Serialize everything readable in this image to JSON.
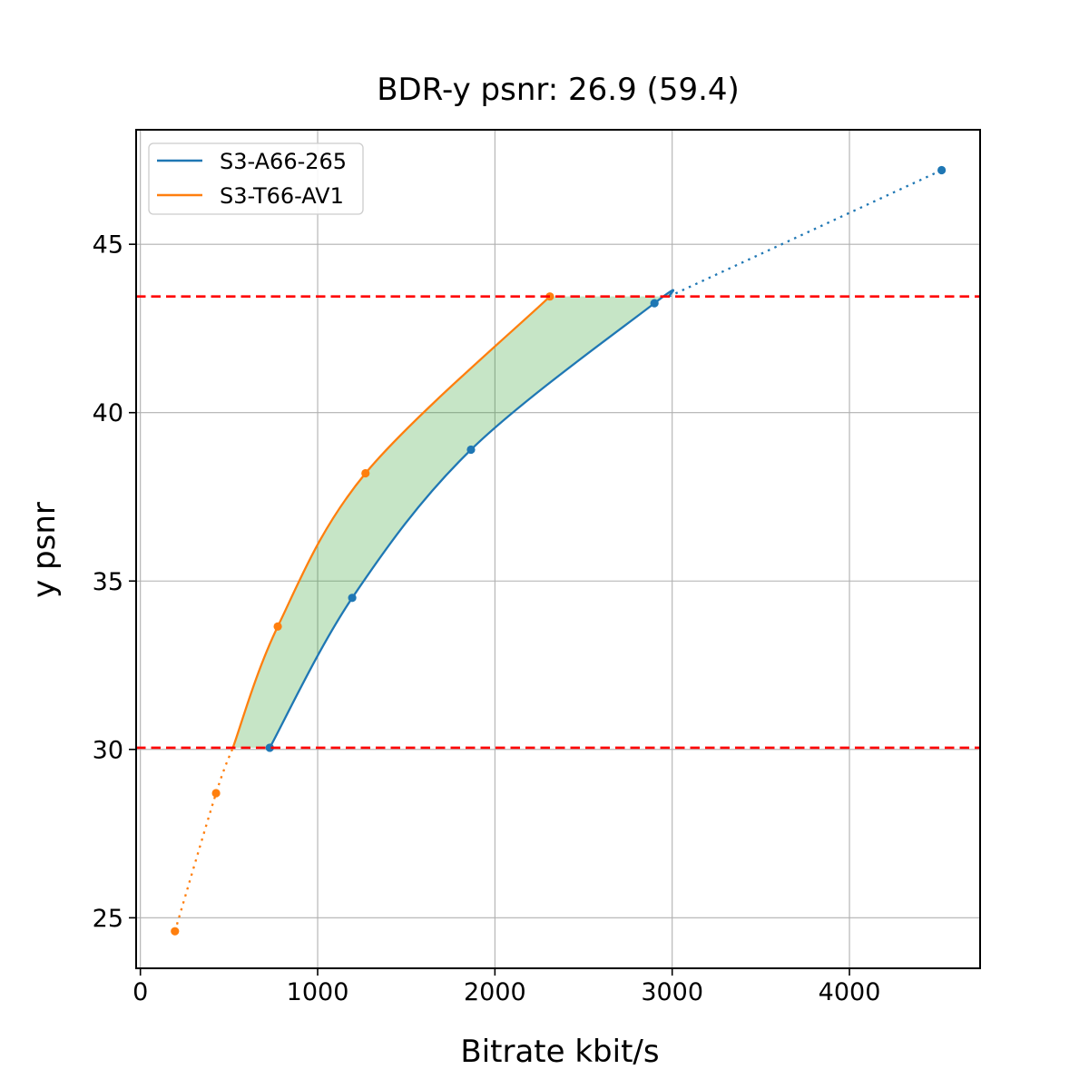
{
  "title": "BDR-y psnr: 26.9 (59.4)",
  "legend": {
    "items": [
      {
        "label": "S3-A66-265",
        "color": "#1f77b4"
      },
      {
        "label": "S3-T66-AV1",
        "color": "#ff7f0e"
      }
    ]
  },
  "chart_data": {
    "type": "line",
    "title": "BDR-y psnr: 26.9 (59.4)",
    "xlabel": "Bitrate kbit/s",
    "ylabel": "y psnr",
    "xlim": [
      -24,
      4737
    ],
    "ylim": [
      23.5,
      48.4
    ],
    "xticks": [
      0,
      1000,
      2000,
      3000,
      4000
    ],
    "yticks": [
      25,
      30,
      35,
      40,
      45
    ],
    "grid": true,
    "grid_color": "#b0b0b0",
    "legend_position": "upper left",
    "series": [
      {
        "name": "S3-A66-265",
        "color": "#1f77b4",
        "points": [
          [
            730,
            30.05
          ],
          [
            1195,
            34.5
          ],
          [
            1865,
            38.9
          ],
          [
            2900,
            43.25
          ],
          [
            4520,
            47.2
          ]
        ]
      },
      {
        "name": "S3-T66-AV1",
        "color": "#ff7f0e",
        "points": [
          [
            195,
            24.6
          ],
          [
            427,
            28.7
          ],
          [
            775,
            33.65
          ],
          [
            1270,
            38.2
          ],
          [
            2310,
            43.45
          ]
        ]
      }
    ],
    "overlap_psnr_range": {
      "low": 30.05,
      "high": 43.45
    },
    "hlines": [
      {
        "y": 30.05,
        "color": "#ff0000",
        "style": "dashed"
      },
      {
        "y": 43.45,
        "color": "#ff0000",
        "style": "dashed"
      }
    ],
    "shaded_region": {
      "between": [
        "S3-T66-AV1",
        "S3-A66-265"
      ],
      "color": "#2ca02c",
      "opacity": 0.27
    }
  }
}
